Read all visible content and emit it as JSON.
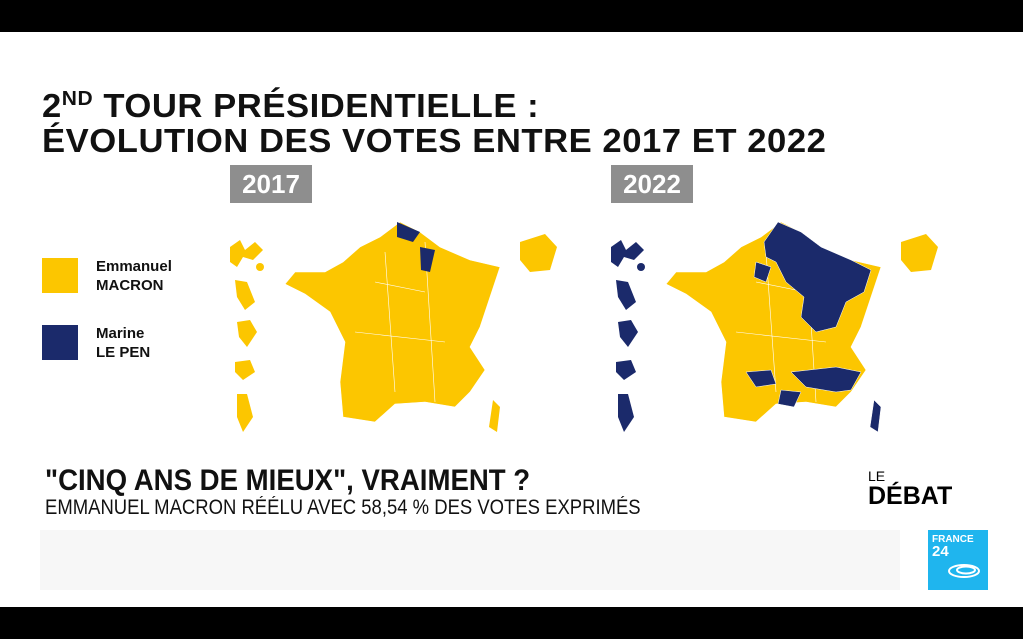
{
  "title": {
    "line1_prefix": "2",
    "line1_sup": "ND",
    "line1_rest": " TOUR PRÉSIDENTIELLE :",
    "line2": "ÉVOLUTION DES VOTES ENTRE 2017 ET 2022"
  },
  "years": [
    "2017",
    "2022"
  ],
  "legend": [
    {
      "first": "Emmanuel",
      "last": "MACRON",
      "color": "#fcc600"
    },
    {
      "first": "Marine",
      "last": "LE PEN",
      "color": "#1b2a6b"
    }
  ],
  "headline": "\"CINQ ANS DE MIEUX\", VRAIMENT ?",
  "subheadline": "EMMANUEL MACRON RÉÉLU AVEC 58,54 % DES VOTES EXPRIMÉS",
  "show": {
    "le": "LE",
    "debat": "DÉBAT"
  },
  "logo": {
    "line1": "FRANCE",
    "line2": "24"
  }
}
